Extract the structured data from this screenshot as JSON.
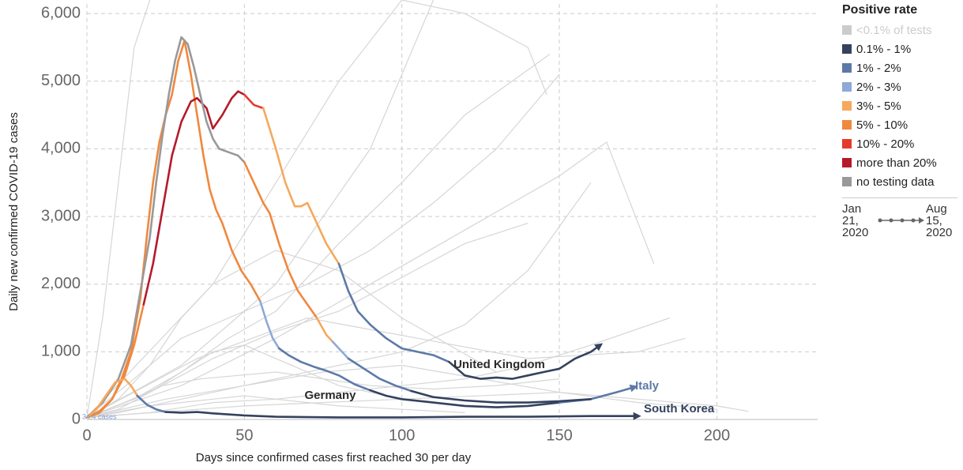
{
  "chart_data": {
    "type": "line",
    "y_label": "Daily new confirmed COVID-19 cases",
    "x_label": "Days since confirmed cases first reached 30 per day",
    "xlim": [
      0,
      232
    ],
    "ylim": [
      0,
      6200
    ],
    "xticks": [
      0,
      50,
      100,
      150,
      200
    ],
    "yticks": [
      0,
      {
        "value": 1000,
        "label": "1,000"
      },
      {
        "value": 2000,
        "label": "2,000"
      },
      {
        "value": 3000,
        "label": "3,000"
      },
      {
        "value": 4000,
        "label": "4,000"
      },
      {
        "value": 5000,
        "label": "5,000"
      },
      {
        "value": 6000,
        "label": "6,000"
      }
    ],
    "grid": true,
    "background_color": "#d6d6d6",
    "background_series": [
      {
        "x": [
          0,
          20,
          40,
          60,
          80,
          100,
          120,
          140
        ],
        "values": [
          30,
          400,
          900,
          1300,
          1600,
          2100,
          2600,
          2900
        ]
      },
      {
        "x": [
          0,
          15,
          30,
          45,
          60,
          80,
          100,
          120,
          147
        ],
        "values": [
          30,
          300,
          700,
          1200,
          1600,
          2600,
          3500,
          4500,
          5400
        ]
      },
      {
        "x": [
          0,
          20,
          40,
          60,
          80,
          100,
          120,
          140,
          160
        ],
        "values": [
          30,
          200,
          400,
          600,
          800,
          1000,
          1400,
          2200,
          3500
        ]
      },
      {
        "x": [
          0,
          10,
          20,
          30,
          40,
          50,
          60,
          70,
          80,
          90,
          100
        ],
        "values": [
          30,
          150,
          400,
          700,
          1000,
          1100,
          900,
          700,
          500,
          400,
          300
        ]
      },
      {
        "x": [
          0,
          25,
          50,
          75,
          100,
          125,
          150,
          175,
          200
        ],
        "values": [
          30,
          300,
          500,
          700,
          800,
          600,
          400,
          250,
          150
        ]
      },
      {
        "x": [
          0,
          30,
          60,
          90,
          120,
          150,
          165,
          180
        ],
        "values": [
          30,
          500,
          1200,
          2000,
          2800,
          3600,
          4100,
          2300
        ]
      },
      {
        "x": [
          0,
          10,
          20,
          30,
          40,
          60,
          80,
          100,
          130
        ],
        "values": [
          30,
          300,
          800,
          1500,
          2000,
          2500,
          2200,
          1500,
          700
        ]
      },
      {
        "x": [
          0,
          20,
          40,
          60,
          80,
          100,
          120,
          140,
          160,
          185
        ],
        "values": [
          30,
          100,
          250,
          300,
          400,
          500,
          600,
          800,
          1100,
          1500
        ]
      },
      {
        "x": [
          0,
          15,
          30,
          50,
          70,
          90,
          110,
          130,
          150
        ],
        "values": [
          30,
          600,
          1200,
          1600,
          2000,
          2500,
          3200,
          4000,
          5100
        ]
      },
      {
        "x": [
          0,
          5,
          10,
          15,
          20
        ],
        "values": [
          30,
          1500,
          3500,
          5500,
          6200
        ]
      },
      {
        "x": [
          0,
          40,
          80,
          100,
          120,
          140,
          146
        ],
        "values": [
          30,
          2000,
          5000,
          6200,
          6000,
          5500,
          4800
        ]
      },
      {
        "x": [
          0,
          10,
          20,
          30,
          40,
          50,
          60,
          80,
          100,
          120
        ],
        "values": [
          30,
          100,
          200,
          250,
          300,
          350,
          300,
          200,
          150,
          100
        ]
      },
      {
        "x": [
          0,
          50,
          100,
          150,
          200,
          210
        ],
        "values": [
          30,
          200,
          300,
          400,
          200,
          120
        ]
      },
      {
        "x": [
          0,
          30,
          60,
          90,
          110
        ],
        "values": [
          30,
          800,
          2000,
          4000,
          6200
        ]
      },
      {
        "x": [
          0,
          35,
          70,
          105,
          140,
          175,
          190
        ],
        "values": [
          30,
          900,
          1500,
          1200,
          900,
          1000,
          1200
        ]
      },
      {
        "x": [
          0,
          12,
          24,
          36,
          48,
          60,
          75,
          90,
          110,
          130,
          150
        ],
        "values": [
          30,
          250,
          500,
          600,
          650,
          700,
          600,
          500,
          450,
          500,
          600
        ]
      }
    ],
    "series": [
      {
        "color": "#f0883e",
        "x": [
          0,
          4,
          8,
          11,
          14,
          17,
          19,
          21,
          23,
          25,
          27,
          29,
          31,
          33,
          35,
          37,
          39,
          41,
          43,
          46,
          49,
          52,
          55
        ],
        "values": [
          30,
          120,
          300,
          600,
          1000,
          1800,
          2700,
          3500,
          4100,
          4500,
          4800,
          5300,
          5600,
          5100,
          4500,
          3900,
          3400,
          3100,
          2900,
          2500,
          2200,
          2000,
          1750
        ]
      },
      {
        "color": "#8ea9d8",
        "x": [
          55,
          57,
          59,
          61
        ],
        "values": [
          1750,
          1450,
          1200,
          1050
        ]
      },
      {
        "color": "#5d79a8",
        "x": [
          61,
          64,
          68,
          72,
          76,
          80,
          85,
          90
        ],
        "values": [
          1050,
          950,
          850,
          780,
          720,
          650,
          520,
          430
        ]
      },
      {
        "color": "#34425e",
        "x": [
          90,
          95,
          100,
          110,
          120,
          130,
          140,
          150
        ],
        "values": [
          430,
          350,
          300,
          250,
          200,
          180,
          200,
          250
        ]
      },
      {
        "color": "#5d79a8",
        "x": [
          150,
          160,
          168,
          174
        ],
        "values": [
          250,
          300,
          400,
          480
        ],
        "arrow": true
      },
      {
        "color": "#f0883e",
        "x": [
          0,
          4,
          8,
          12,
          15,
          18
        ],
        "values": [
          30,
          100,
          300,
          650,
          1100,
          1700
        ]
      },
      {
        "color": "#b51a2a",
        "x": [
          18,
          21,
          24,
          27,
          30,
          33,
          35,
          38,
          40,
          43,
          46,
          48,
          50
        ],
        "values": [
          1700,
          2300,
          3100,
          3900,
          4400,
          4700,
          4750,
          4600,
          4300,
          4500,
          4750,
          4850,
          4800
        ]
      },
      {
        "color": "#e43a2c",
        "x": [
          50,
          53,
          56
        ],
        "values": [
          4800,
          4650,
          4600
        ]
      },
      {
        "color": "#f6a85c",
        "x": [
          56,
          60,
          63,
          66,
          68,
          70,
          73,
          76,
          80
        ],
        "values": [
          4600,
          4000,
          3500,
          3150,
          3150,
          3200,
          2900,
          2600,
          2300
        ]
      },
      {
        "color": "#5d79a8",
        "x": [
          80,
          83,
          86,
          90,
          95,
          100,
          105,
          110,
          115
        ],
        "values": [
          2300,
          1900,
          1600,
          1400,
          1200,
          1050,
          1000,
          950,
          850
        ]
      },
      {
        "color": "#34425e",
        "x": [
          115,
          120,
          125,
          130,
          135,
          140,
          145,
          150,
          155,
          160,
          163
        ],
        "values": [
          850,
          650,
          600,
          620,
          600,
          650,
          700,
          750,
          900,
          1000,
          1100
        ],
        "arrow": true
      },
      {
        "color": "#999999",
        "x": [
          0,
          5,
          10,
          14,
          17,
          20,
          22,
          24,
          26,
          28,
          30,
          32,
          34,
          36,
          38,
          40,
          42,
          45,
          48,
          50
        ],
        "values": [
          30,
          250,
          600,
          1100,
          1900,
          2700,
          3500,
          4200,
          4800,
          5300,
          5650,
          5550,
          5200,
          4800,
          4400,
          4150,
          4000,
          3950,
          3900,
          3800
        ]
      },
      {
        "color": "#f0883e",
        "x": [
          50,
          53,
          56,
          58,
          61,
          64,
          67,
          70,
          73
        ],
        "values": [
          3800,
          3500,
          3200,
          3050,
          2600,
          2200,
          1900,
          1700,
          1500
        ]
      },
      {
        "color": "#f6a85c",
        "x": [
          73,
          76,
          78
        ],
        "values": [
          1500,
          1250,
          1150
        ]
      },
      {
        "color": "#8ea9d8",
        "x": [
          78,
          80,
          83
        ],
        "values": [
          1150,
          1050,
          900
        ]
      },
      {
        "color": "#5d79a8",
        "x": [
          83,
          88,
          93,
          98,
          103
        ],
        "values": [
          900,
          750,
          600,
          500,
          420
        ]
      },
      {
        "color": "#34425e",
        "x": [
          103,
          110,
          120,
          130,
          140,
          150,
          160
        ],
        "values": [
          420,
          330,
          280,
          250,
          250,
          270,
          300
        ]
      },
      {
        "color": "#f6a85c",
        "x": [
          0,
          3,
          6,
          9,
          12,
          14,
          16
        ],
        "values": [
          30,
          150,
          350,
          550,
          600,
          500,
          350
        ]
      },
      {
        "color": "#5d79a8",
        "x": [
          16,
          19,
          22,
          25
        ],
        "values": [
          350,
          220,
          150,
          110
        ]
      },
      {
        "color": "#34425e",
        "x": [
          25,
          30,
          35,
          40,
          50,
          60,
          80,
          100,
          120,
          140,
          160,
          175
        ],
        "values": [
          110,
          100,
          110,
          90,
          60,
          40,
          30,
          30,
          40,
          40,
          50,
          50
        ],
        "arrow": true
      }
    ],
    "annotations": [
      {
        "text": "United Kingdom",
        "color": "#2b2b2b"
      },
      {
        "text": "Germany",
        "color": "#2b2b2b"
      },
      {
        "text": "Italy",
        "color": "#5d79a8"
      },
      {
        "text": "South Korea",
        "color": "#34425e"
      },
      {
        "text": "34.4 cases",
        "color": "#7f9fd6"
      }
    ],
    "legend": {
      "title": "Positive rate",
      "items": [
        {
          "label": "<0.1% of tests",
          "color": "#cccccc"
        },
        {
          "label": "0.1% - 1%",
          "color": "#34425e"
        },
        {
          "label": "1% - 2%",
          "color": "#5d79a8"
        },
        {
          "label": "2% - 3%",
          "color": "#8ea9d8"
        },
        {
          "label": "3% - 5%",
          "color": "#f6a85c"
        },
        {
          "label": "5% - 10%",
          "color": "#f0883e"
        },
        {
          "label": "10% - 20%",
          "color": "#e43a2c"
        },
        {
          "label": "more than 20%",
          "color": "#b51a2a"
        },
        {
          "label": "no testing data",
          "color": "#999999"
        }
      ],
      "timeline": {
        "start": "Jan 21, 2020",
        "end": "Aug 15, 2020"
      }
    }
  }
}
